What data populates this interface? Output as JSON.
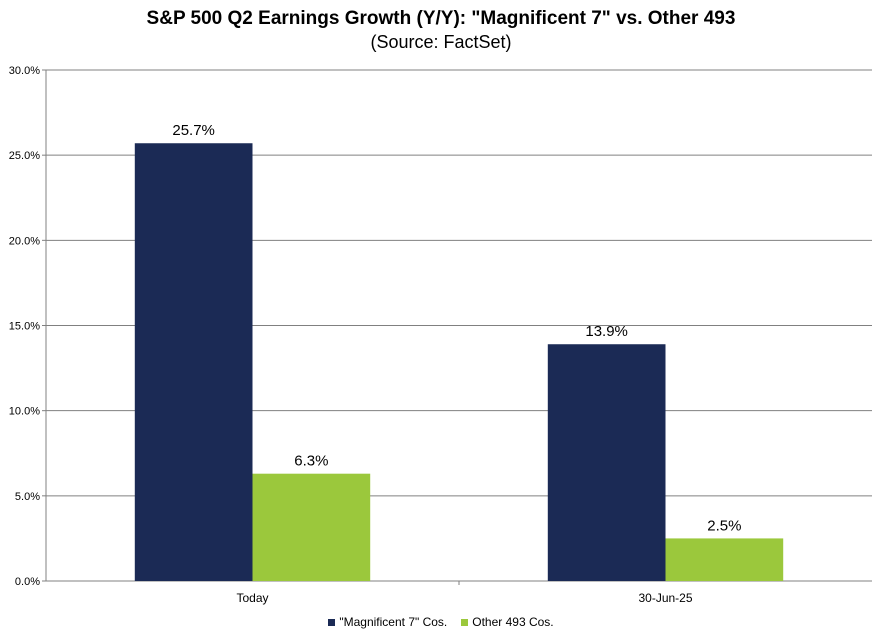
{
  "chart_data": {
    "type": "bar",
    "title": "S&P 500 Q2 Earnings Growth (Y/Y): \"Magnificent 7\" vs. Other 493",
    "subtitle": "(Source: FactSet)",
    "categories": [
      "Today",
      "30-Jun-25"
    ],
    "series": [
      {
        "name": "\"Magnificent 7\" Cos.",
        "values": [
          25.7,
          13.9
        ],
        "labels": [
          "25.7%",
          "13.9%"
        ],
        "color": "#1b2a55"
      },
      {
        "name": "Other 493 Cos.",
        "values": [
          6.3,
          2.5
        ],
        "labels": [
          "6.3%",
          "2.5%"
        ],
        "color": "#9bc83c"
      }
    ],
    "ylim": [
      0,
      30
    ],
    "yticks": [
      0,
      5,
      10,
      15,
      20,
      25,
      30
    ],
    "ytick_labels": [
      "0.0%",
      "5.0%",
      "10.0%",
      "15.0%",
      "20.0%",
      "25.0%",
      "30.0%"
    ],
    "grid": true,
    "legend": "bottom"
  }
}
